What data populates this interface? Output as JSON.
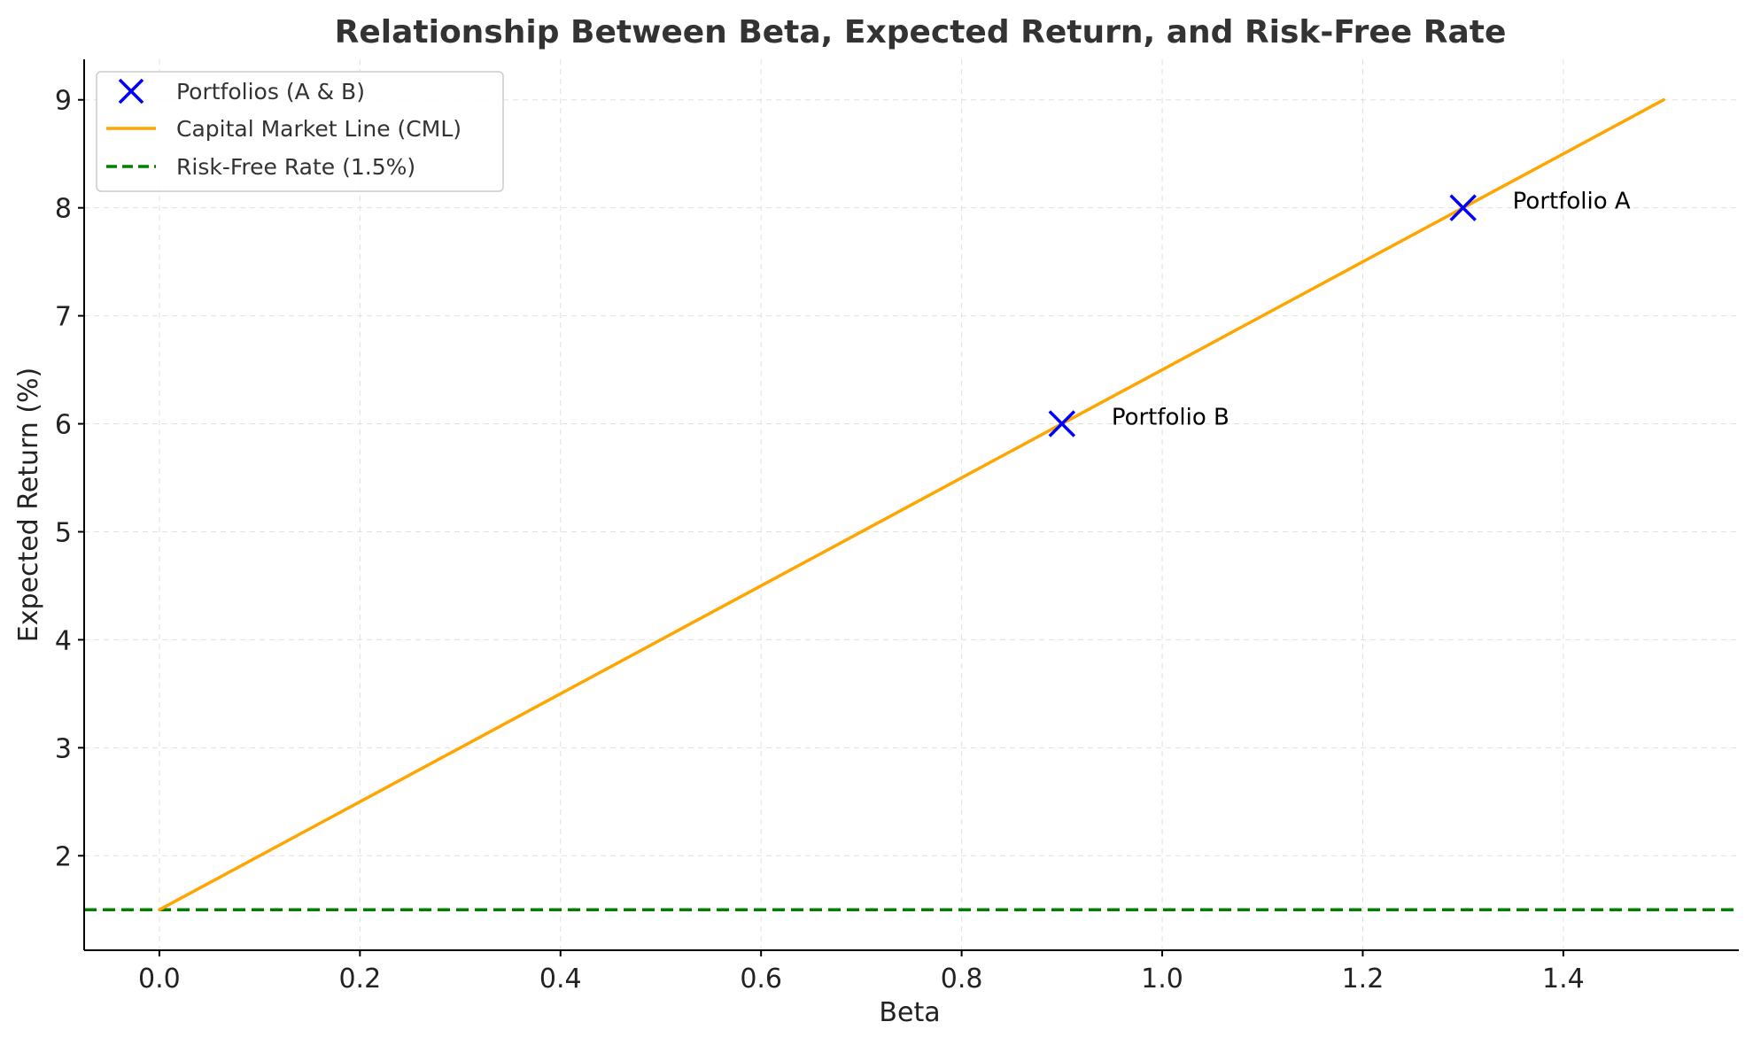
{
  "chart_data": {
    "type": "line",
    "title": "Relationship Between Beta, Expected Return, and Risk-Free Rate",
    "xlabel": "Beta",
    "ylabel": "Expected Return (%)",
    "xlim": [
      -0.075,
      1.575
    ],
    "ylim": [
      1.125,
      9.375
    ],
    "xticks": [
      0.0,
      0.2,
      0.4,
      0.6,
      0.8,
      1.0,
      1.2,
      1.4
    ],
    "xtick_labels": [
      "0.0",
      "0.2",
      "0.4",
      "0.6",
      "0.8",
      "1.0",
      "1.2",
      "1.4"
    ],
    "yticks": [
      2,
      3,
      4,
      5,
      6,
      7,
      8,
      9
    ],
    "ytick_labels": [
      "2",
      "3",
      "4",
      "5",
      "6",
      "7",
      "8",
      "9"
    ],
    "grid": true,
    "legend_position": "top-left",
    "series": [
      {
        "name": "Portfolios (A & B)",
        "kind": "scatter",
        "marker": "x",
        "color": "#0000ff",
        "points": [
          {
            "x": 1.3,
            "y": 8,
            "label": "Portfolio A"
          },
          {
            "x": 0.9,
            "y": 6,
            "label": "Portfolio B"
          }
        ]
      },
      {
        "name": "Capital Market Line (CML)",
        "kind": "line",
        "color": "#ffa500",
        "x": [
          0.0,
          1.5
        ],
        "y": [
          1.5,
          9.0
        ]
      },
      {
        "name": "Risk-Free Rate (1.5%)",
        "kind": "hline",
        "style": "dashed",
        "color": "#008000",
        "y": 1.5
      }
    ]
  }
}
